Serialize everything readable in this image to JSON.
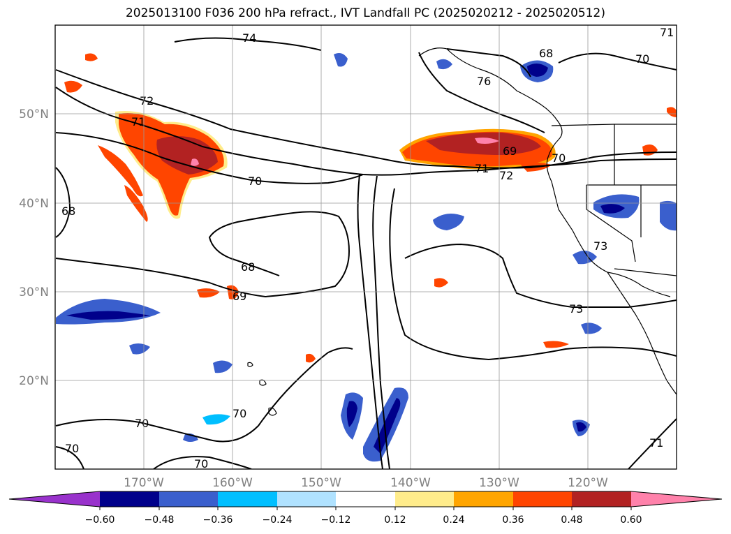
{
  "title": "2025013100 F036 200 hPa refract., IVT Landfall PC (2025020212 - 2025020512)",
  "map": {
    "lon_ticks": [
      "170°W",
      "160°W",
      "150°W",
      "140°W",
      "130°W",
      "120°W"
    ],
    "lat_ticks": [
      "50°N",
      "40°N",
      "30°N",
      "20°N"
    ],
    "contour_labels": [
      "74",
      "72",
      "71",
      "70",
      "68",
      "68",
      "69",
      "68",
      "76",
      "70",
      "69",
      "71",
      "72",
      "70",
      "71",
      "73",
      "73",
      "70",
      "70",
      "70",
      "70",
      "71"
    ]
  },
  "colorbar": {
    "ticks": [
      "−0.60",
      "−0.48",
      "−0.36",
      "−0.24",
      "−0.12",
      "0.12",
      "0.24",
      "0.36",
      "0.48",
      "0.60"
    ],
    "colors": [
      "#9932cc",
      "#00008b",
      "#3a5fcd",
      "#00bfff",
      "#b0e2ff",
      "#ffffff",
      "#ffec8b",
      "#ffa500",
      "#ff4500",
      "#b22222",
      "#ff82ab"
    ]
  }
}
